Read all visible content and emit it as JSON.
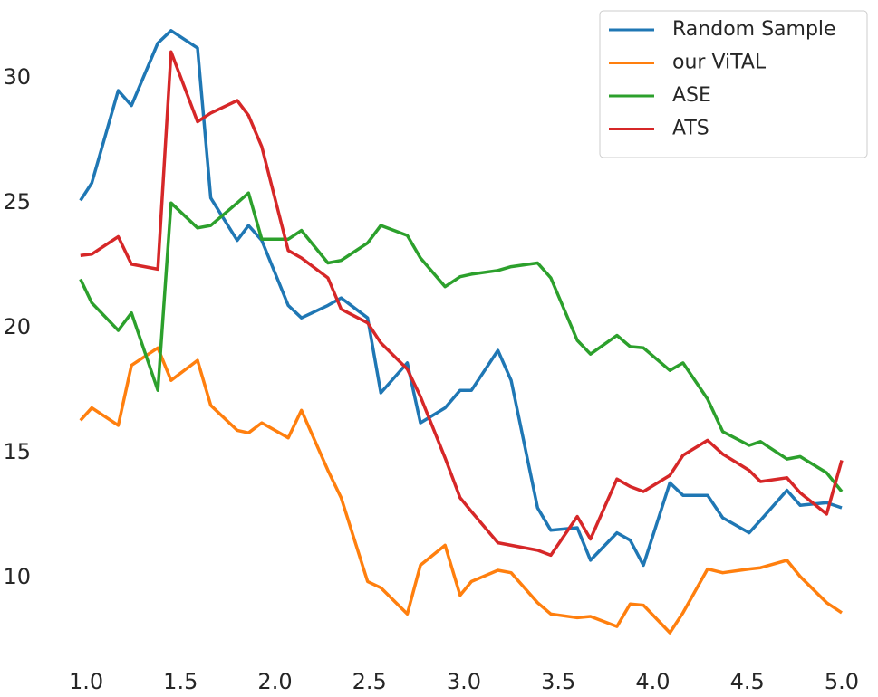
{
  "chart_data": {
    "type": "line",
    "x": [
      0.97,
      1.03,
      1.17,
      1.24,
      1.38,
      1.45,
      1.59,
      1.66,
      1.8,
      1.86,
      1.93,
      2.07,
      2.14,
      2.28,
      2.35,
      2.49,
      2.56,
      2.7,
      2.77,
      2.9,
      2.98,
      3.04,
      3.18,
      3.25,
      3.39,
      3.46,
      3.6,
      3.67,
      3.81,
      3.88,
      3.95,
      4.09,
      4.16,
      4.29,
      4.37,
      4.51,
      4.57,
      4.71,
      4.78,
      4.92,
      5.0
    ],
    "series": [
      {
        "name": "Random Sample",
        "color": "#1f77b4",
        "values": [
          25.1,
          25.8,
          29.5,
          28.9,
          31.4,
          31.9,
          31.2,
          25.2,
          23.5,
          24.1,
          23.5,
          20.9,
          20.4,
          20.9,
          21.2,
          20.4,
          17.4,
          18.6,
          16.2,
          16.8,
          17.5,
          17.5,
          19.1,
          17.9,
          12.8,
          11.9,
          12.0,
          10.7,
          11.8,
          11.5,
          10.5,
          13.8,
          13.3,
          13.3,
          12.4,
          11.8,
          12.3,
          13.5,
          12.9,
          13.0,
          12.8
        ]
      },
      {
        "name": "our ViTAL",
        "color": "#ff7f0e",
        "values": [
          16.3,
          16.8,
          16.1,
          18.5,
          19.2,
          17.9,
          18.7,
          16.9,
          15.9,
          15.8,
          16.2,
          15.6,
          16.7,
          14.3,
          13.2,
          9.85,
          9.6,
          8.55,
          10.5,
          11.3,
          9.3,
          9.85,
          10.3,
          10.2,
          9.0,
          8.55,
          8.4,
          8.45,
          8.05,
          8.95,
          8.9,
          7.8,
          8.6,
          10.35,
          10.2,
          10.35,
          10.4,
          10.7,
          10.05,
          9.0,
          8.6
        ]
      },
      {
        "name": "ASE",
        "color": "#2ca02c",
        "values": [
          21.95,
          21.0,
          19.9,
          20.6,
          17.5,
          25.0,
          24.0,
          24.1,
          25.0,
          25.4,
          23.55,
          23.55,
          23.9,
          22.6,
          22.7,
          23.4,
          24.1,
          23.7,
          22.8,
          21.65,
          22.05,
          22.15,
          22.3,
          22.45,
          22.6,
          22.0,
          19.5,
          18.95,
          19.7,
          19.25,
          19.2,
          18.3,
          18.6,
          17.15,
          15.85,
          15.3,
          15.45,
          14.75,
          14.85,
          14.2,
          13.45
        ]
      },
      {
        "name": "ATS",
        "color": "#d62728",
        "values": [
          22.9,
          22.95,
          23.65,
          22.55,
          22.35,
          31.05,
          28.25,
          28.6,
          29.1,
          28.5,
          27.25,
          23.1,
          22.8,
          22.0,
          20.75,
          20.2,
          19.4,
          18.35,
          17.25,
          14.8,
          13.2,
          12.65,
          11.4,
          11.3,
          11.1,
          10.9,
          12.45,
          11.55,
          13.95,
          13.65,
          13.45,
          14.1,
          14.9,
          15.5,
          14.95,
          14.3,
          13.85,
          14.0,
          13.4,
          12.55,
          14.7
        ]
      }
    ],
    "xlim": [
      0.95,
      5.05
    ],
    "xticks": [
      {
        "value": 1,
        "label": "1.0"
      },
      {
        "value": 1.5,
        "label": "1.5"
      },
      {
        "value": 2,
        "label": "2.0"
      },
      {
        "value": 2.5,
        "label": "2.5"
      },
      {
        "value": 3,
        "label": "3.0"
      },
      {
        "value": 3.5,
        "label": "3.5"
      },
      {
        "value": 4,
        "label": "4.0"
      },
      {
        "value": 4.5,
        "label": "4.5"
      },
      {
        "value": 5,
        "label": "5.0"
      }
    ],
    "ylim": [
      7.4,
      32.4
    ],
    "yticks": [
      10,
      15,
      20,
      25,
      30
    ],
    "grid": false,
    "legend": "upper right"
  }
}
